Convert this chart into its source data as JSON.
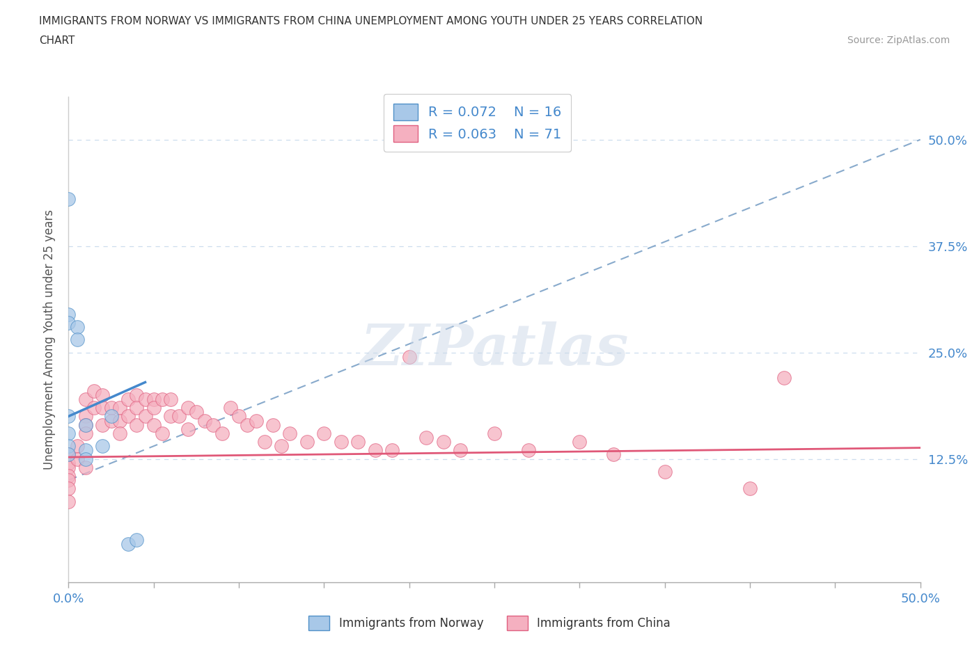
{
  "title_line1": "IMMIGRANTS FROM NORWAY VS IMMIGRANTS FROM CHINA UNEMPLOYMENT AMONG YOUTH UNDER 25 YEARS CORRELATION",
  "title_line2": "CHART",
  "source_text": "Source: ZipAtlas.com",
  "ylabel": "Unemployment Among Youth under 25 years",
  "xmin": 0.0,
  "xmax": 0.5,
  "ymin": -0.02,
  "ymax": 0.55,
  "ytick_vals": [
    0.0,
    0.125,
    0.25,
    0.375,
    0.5
  ],
  "ytick_labels": [
    "",
    "12.5%",
    "25.0%",
    "37.5%",
    "50.0%"
  ],
  "xtick_vals": [
    0.0,
    0.05,
    0.1,
    0.15,
    0.2,
    0.25,
    0.3,
    0.35,
    0.4,
    0.45,
    0.5
  ],
  "xtick_label_left": "0.0%",
  "xtick_label_right": "50.0%",
  "norway_R": 0.072,
  "norway_N": 16,
  "china_R": 0.063,
  "china_N": 71,
  "norway_color": "#a8c8e8",
  "china_color": "#f5b0c0",
  "norway_edge_color": "#5090c8",
  "china_edge_color": "#e06080",
  "norway_line_color": "#4488cc",
  "china_line_color": "#e05878",
  "dashed_line_color": "#88aacc",
  "background_color": "#ffffff",
  "watermark_text": "ZIPatlas",
  "norway_scatter_x": [
    0.0,
    0.0,
    0.0,
    0.0,
    0.0,
    0.0,
    0.0,
    0.005,
    0.005,
    0.01,
    0.01,
    0.01,
    0.02,
    0.025,
    0.035,
    0.04
  ],
  "norway_scatter_y": [
    0.43,
    0.295,
    0.285,
    0.175,
    0.155,
    0.14,
    0.13,
    0.28,
    0.265,
    0.165,
    0.135,
    0.125,
    0.14,
    0.175,
    0.025,
    0.03
  ],
  "china_scatter_x": [
    0.0,
    0.0,
    0.0,
    0.0,
    0.0,
    0.0,
    0.0,
    0.0,
    0.005,
    0.005,
    0.01,
    0.01,
    0.01,
    0.01,
    0.01,
    0.015,
    0.015,
    0.02,
    0.02,
    0.02,
    0.025,
    0.025,
    0.03,
    0.03,
    0.03,
    0.035,
    0.035,
    0.04,
    0.04,
    0.04,
    0.045,
    0.045,
    0.05,
    0.05,
    0.05,
    0.055,
    0.055,
    0.06,
    0.06,
    0.065,
    0.07,
    0.07,
    0.075,
    0.08,
    0.085,
    0.09,
    0.095,
    0.1,
    0.105,
    0.11,
    0.115,
    0.12,
    0.125,
    0.13,
    0.14,
    0.15,
    0.16,
    0.17,
    0.18,
    0.19,
    0.2,
    0.21,
    0.22,
    0.23,
    0.25,
    0.27,
    0.3,
    0.32,
    0.35,
    0.4,
    0.42
  ],
  "china_scatter_y": [
    0.13,
    0.13,
    0.12,
    0.115,
    0.105,
    0.1,
    0.09,
    0.075,
    0.14,
    0.125,
    0.195,
    0.175,
    0.165,
    0.155,
    0.115,
    0.205,
    0.185,
    0.2,
    0.185,
    0.165,
    0.185,
    0.17,
    0.185,
    0.17,
    0.155,
    0.195,
    0.175,
    0.2,
    0.185,
    0.165,
    0.195,
    0.175,
    0.195,
    0.185,
    0.165,
    0.195,
    0.155,
    0.195,
    0.175,
    0.175,
    0.185,
    0.16,
    0.18,
    0.17,
    0.165,
    0.155,
    0.185,
    0.175,
    0.165,
    0.17,
    0.145,
    0.165,
    0.14,
    0.155,
    0.145,
    0.155,
    0.145,
    0.145,
    0.135,
    0.135,
    0.245,
    0.15,
    0.145,
    0.135,
    0.155,
    0.135,
    0.145,
    0.13,
    0.11,
    0.09,
    0.22
  ],
  "norway_line_x": [
    0.0,
    0.045
  ],
  "norway_line_y": [
    0.175,
    0.215
  ],
  "china_line_x": [
    0.0,
    0.5
  ],
  "china_line_y": [
    0.127,
    0.138
  ],
  "dashed_line_x": [
    0.0,
    0.5
  ],
  "dashed_line_y": [
    0.1,
    0.5
  ]
}
